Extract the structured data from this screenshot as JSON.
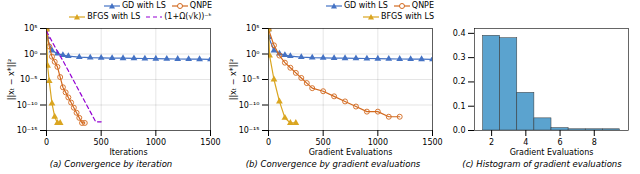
{
  "chart_data": [
    {
      "type": "line",
      "title": "(a) Convergence by iteration",
      "xlabel": "Iterations",
      "ylabel": "||xₜ − x*||²",
      "log": "y",
      "grid": true,
      "legend": "upper right",
      "xlim": [
        0,
        1500
      ],
      "xticks": [
        0,
        500,
        1000,
        1500
      ],
      "ylim": [
        1e-15,
        100000.0
      ],
      "yticks": [
        {
          "value": 1e-15,
          "label": "10⁻¹⁵"
        },
        {
          "value": 1e-10,
          "label": "10⁻¹⁰"
        },
        {
          "value": 1e-05,
          "label": "10⁻⁵"
        },
        {
          "value": 1,
          "label": "10⁰"
        },
        {
          "value": 100000.0,
          "label": "10⁵"
        }
      ],
      "series": [
        {
          "name": "GD with LS",
          "color": "#4472c4",
          "marker": "triangle",
          "line_style": "solid",
          "x": [
            0,
            2,
            50,
            100,
            150,
            200,
            300,
            400,
            500,
            600,
            700,
            800,
            900,
            1000,
            1100,
            1200,
            1300,
            1400,
            1500
          ],
          "values": [
            70000.0,
            2000.0,
            5.0,
            1.2,
            0.6,
            0.4,
            0.25,
            0.2,
            0.18,
            0.16,
            0.15,
            0.14,
            0.13,
            0.12,
            0.11,
            0.105,
            0.1,
            0.095,
            0.09
          ]
        },
        {
          "name": "QNPE",
          "color": "#d2691e",
          "marker": "circle",
          "line_style": "solid",
          "x": [
            0,
            25,
            50,
            75,
            100,
            125,
            150,
            175,
            200,
            225,
            250,
            275,
            300,
            325,
            350
          ],
          "values": [
            70000.0,
            30.0,
            0.3,
            0.03,
            0.003,
            3e-05,
            3e-07,
            3e-08,
            3e-09,
            3e-10,
            3e-11,
            3e-12,
            3e-13,
            3e-14,
            3e-14
          ]
        },
        {
          "name": "BFGS with LS",
          "color": "#daa520",
          "marker": "triangle",
          "line_style": "solid",
          "x": [
            0,
            10,
            25,
            50,
            75,
            100,
            125
          ],
          "values": [
            70000.0,
            0.005,
            5e-06,
            2e-10,
            5e-13,
            3e-14,
            3e-14
          ]
        },
        {
          "name": "(1+Ω(√k))⁻ᵏ",
          "color": "#9400d3",
          "line_style": "dashed",
          "x": [
            0,
            50,
            100,
            150,
            200,
            250,
            300,
            350,
            400,
            450,
            500
          ],
          "values": [
            30000.0,
            300.0,
            3.0,
            0.05,
            0.0005,
            5e-06,
            5e-08,
            5e-10,
            5e-12,
            5e-14,
            5e-14
          ]
        }
      ]
    },
    {
      "type": "line",
      "title": "(b) Convergence by gradient evaluations",
      "xlabel": "Gradient Evaluations",
      "ylabel": "||xₜ − x*||²",
      "log": "y",
      "grid": true,
      "legend": "upper right",
      "xlim": [
        0,
        1500
      ],
      "xticks": [
        0,
        500,
        1000,
        1500
      ],
      "ylim": [
        1e-15,
        100000.0
      ],
      "yticks": [
        {
          "value": 1e-15,
          "label": "10⁻¹⁵"
        },
        {
          "value": 1e-10,
          "label": "10⁻¹⁰"
        },
        {
          "value": 1e-05,
          "label": "10⁻⁵"
        },
        {
          "value": 1,
          "label": "10⁰"
        },
        {
          "value": 100000.0,
          "label": "10⁵"
        }
      ],
      "series": [
        {
          "name": "GD with LS",
          "color": "#4472c4",
          "marker": "triangle",
          "line_style": "solid",
          "x": [
            0,
            2,
            50,
            100,
            150,
            200,
            300,
            400,
            500,
            600,
            700,
            800,
            900,
            1000,
            1100,
            1200,
            1300,
            1400,
            1500
          ],
          "values": [
            70000.0,
            2000.0,
            5.0,
            1.2,
            0.6,
            0.4,
            0.25,
            0.2,
            0.18,
            0.16,
            0.15,
            0.14,
            0.13,
            0.12,
            0.11,
            0.105,
            0.1,
            0.095,
            0.09
          ]
        },
        {
          "name": "QNPE",
          "color": "#d2691e",
          "marker": "circle",
          "line_style": "solid",
          "x": [
            0,
            50,
            100,
            150,
            200,
            250,
            300,
            350,
            400,
            500,
            600,
            700,
            800,
            900,
            1000,
            1100,
            1200
          ],
          "values": [
            70000.0,
            50.0,
            0.5,
            0.02,
            0.002,
            0.0002,
            2e-05,
            2e-06,
            2e-07,
            5e-08,
            5e-09,
            5e-10,
            5e-11,
            5e-12,
            5e-12,
            5e-13,
            5e-13
          ]
        },
        {
          "name": "BFGS with LS",
          "color": "#daa520",
          "marker": "triangle",
          "line_style": "solid",
          "x": [
            0,
            10,
            50,
            100,
            150,
            200,
            250
          ],
          "values": [
            70000.0,
            0.5,
            1e-05,
            5e-10,
            3e-13,
            3e-14,
            3e-14
          ]
        }
      ]
    },
    {
      "type": "histogram",
      "title": "(c) Histogram of gradient evaluations",
      "xlabel": "Gradient Evaluations",
      "grid": false,
      "color": "#5ba3cf",
      "bins": [
        1.5,
        2.5,
        3.5,
        4.5,
        5.5,
        6.5,
        7.5,
        8.5,
        9.5
      ],
      "values": [
        0.39,
        0.38,
        0.155,
        0.05,
        0.01,
        0.005,
        0.005,
        0.005
      ],
      "xlim": [
        1,
        10
      ],
      "xticks": [
        2,
        4,
        6,
        8
      ],
      "ylim": [
        0,
        0.42
      ],
      "yticks": [
        {
          "value": 0,
          "label": "0.0"
        },
        0.1,
        0.2,
        0.3,
        0.4
      ]
    }
  ]
}
